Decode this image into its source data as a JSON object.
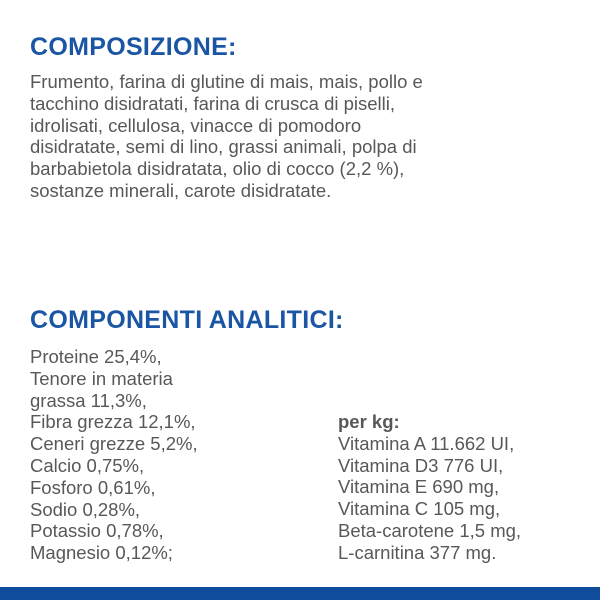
{
  "composition": {
    "title": "COMPOSIZIONE:",
    "lines": [
      "Frumento, farina di glutine di mais, mais, pollo e",
      "tacchino disidratati, farina di crusca di piselli,",
      "idrolisati, cellulosa, vinacce di pomodoro",
      "disidratate, semi di lino, grassi animali, polpa di",
      "barbabietola disidratata, olio di cocco (2,2 %),",
      "sostanze minerali, carote disidratate."
    ]
  },
  "analytics": {
    "title": "COMPONENTI ANALITICI:",
    "left_lines": [
      "Proteine 25,4%,",
      "Tenore in materia",
      "grassa 11,3%,",
      "Fibra grezza 12,1%,",
      "Ceneri grezze 5,2%,",
      "Calcio 0,75%,",
      "Fosforo 0,61%,",
      "Sodio 0,28%,",
      "Potassio 0,78%,",
      "Magnesio 0,12%;"
    ],
    "per_kg_label": "per kg:",
    "right_lines": [
      "Vitamina A 11.662 UI,",
      "Vitamina D3 776 UI,",
      "Vitamina E 690 mg,",
      "Vitamina C 105 mg,",
      "Beta-carotene 1,5 mg,",
      "L-carnitina 377 mg."
    ]
  },
  "colors": {
    "heading": "#1a56a3",
    "body": "#585858",
    "footer_bar": "#0f4d9c"
  }
}
